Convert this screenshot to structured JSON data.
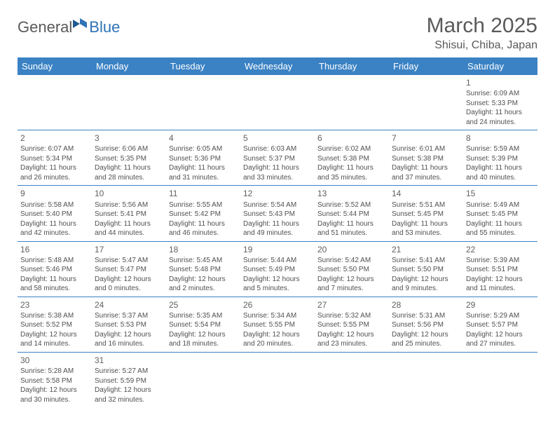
{
  "logo": {
    "part1": "General",
    "part2": "Blue",
    "icon_color": "#2e74b5"
  },
  "title": "March 2025",
  "location": "Shisui, Chiba, Japan",
  "header_bg": "#3b82c4",
  "header_fg": "#ffffff",
  "border_color": "#3b82c4",
  "weekdays": [
    "Sunday",
    "Monday",
    "Tuesday",
    "Wednesday",
    "Thursday",
    "Friday",
    "Saturday"
  ],
  "weeks": [
    [
      null,
      null,
      null,
      null,
      null,
      null,
      {
        "n": "1",
        "sr": "6:09 AM",
        "ss": "5:33 PM",
        "dl": "11 hours and 24 minutes."
      }
    ],
    [
      {
        "n": "2",
        "sr": "6:07 AM",
        "ss": "5:34 PM",
        "dl": "11 hours and 26 minutes."
      },
      {
        "n": "3",
        "sr": "6:06 AM",
        "ss": "5:35 PM",
        "dl": "11 hours and 28 minutes."
      },
      {
        "n": "4",
        "sr": "6:05 AM",
        "ss": "5:36 PM",
        "dl": "11 hours and 31 minutes."
      },
      {
        "n": "5",
        "sr": "6:03 AM",
        "ss": "5:37 PM",
        "dl": "11 hours and 33 minutes."
      },
      {
        "n": "6",
        "sr": "6:02 AM",
        "ss": "5:38 PM",
        "dl": "11 hours and 35 minutes."
      },
      {
        "n": "7",
        "sr": "6:01 AM",
        "ss": "5:38 PM",
        "dl": "11 hours and 37 minutes."
      },
      {
        "n": "8",
        "sr": "5:59 AM",
        "ss": "5:39 PM",
        "dl": "11 hours and 40 minutes."
      }
    ],
    [
      {
        "n": "9",
        "sr": "5:58 AM",
        "ss": "5:40 PM",
        "dl": "11 hours and 42 minutes."
      },
      {
        "n": "10",
        "sr": "5:56 AM",
        "ss": "5:41 PM",
        "dl": "11 hours and 44 minutes."
      },
      {
        "n": "11",
        "sr": "5:55 AM",
        "ss": "5:42 PM",
        "dl": "11 hours and 46 minutes."
      },
      {
        "n": "12",
        "sr": "5:54 AM",
        "ss": "5:43 PM",
        "dl": "11 hours and 49 minutes."
      },
      {
        "n": "13",
        "sr": "5:52 AM",
        "ss": "5:44 PM",
        "dl": "11 hours and 51 minutes."
      },
      {
        "n": "14",
        "sr": "5:51 AM",
        "ss": "5:45 PM",
        "dl": "11 hours and 53 minutes."
      },
      {
        "n": "15",
        "sr": "5:49 AM",
        "ss": "5:45 PM",
        "dl": "11 hours and 55 minutes."
      }
    ],
    [
      {
        "n": "16",
        "sr": "5:48 AM",
        "ss": "5:46 PM",
        "dl": "11 hours and 58 minutes."
      },
      {
        "n": "17",
        "sr": "5:47 AM",
        "ss": "5:47 PM",
        "dl": "12 hours and 0 minutes."
      },
      {
        "n": "18",
        "sr": "5:45 AM",
        "ss": "5:48 PM",
        "dl": "12 hours and 2 minutes."
      },
      {
        "n": "19",
        "sr": "5:44 AM",
        "ss": "5:49 PM",
        "dl": "12 hours and 5 minutes."
      },
      {
        "n": "20",
        "sr": "5:42 AM",
        "ss": "5:50 PM",
        "dl": "12 hours and 7 minutes."
      },
      {
        "n": "21",
        "sr": "5:41 AM",
        "ss": "5:50 PM",
        "dl": "12 hours and 9 minutes."
      },
      {
        "n": "22",
        "sr": "5:39 AM",
        "ss": "5:51 PM",
        "dl": "12 hours and 11 minutes."
      }
    ],
    [
      {
        "n": "23",
        "sr": "5:38 AM",
        "ss": "5:52 PM",
        "dl": "12 hours and 14 minutes."
      },
      {
        "n": "24",
        "sr": "5:37 AM",
        "ss": "5:53 PM",
        "dl": "12 hours and 16 minutes."
      },
      {
        "n": "25",
        "sr": "5:35 AM",
        "ss": "5:54 PM",
        "dl": "12 hours and 18 minutes."
      },
      {
        "n": "26",
        "sr": "5:34 AM",
        "ss": "5:55 PM",
        "dl": "12 hours and 20 minutes."
      },
      {
        "n": "27",
        "sr": "5:32 AM",
        "ss": "5:55 PM",
        "dl": "12 hours and 23 minutes."
      },
      {
        "n": "28",
        "sr": "5:31 AM",
        "ss": "5:56 PM",
        "dl": "12 hours and 25 minutes."
      },
      {
        "n": "29",
        "sr": "5:29 AM",
        "ss": "5:57 PM",
        "dl": "12 hours and 27 minutes."
      }
    ],
    [
      {
        "n": "30",
        "sr": "5:28 AM",
        "ss": "5:58 PM",
        "dl": "12 hours and 30 minutes."
      },
      {
        "n": "31",
        "sr": "5:27 AM",
        "ss": "5:59 PM",
        "dl": "12 hours and 32 minutes."
      },
      null,
      null,
      null,
      null,
      null
    ]
  ],
  "labels": {
    "sunrise": "Sunrise: ",
    "sunset": "Sunset: ",
    "daylight": "Daylight: "
  }
}
